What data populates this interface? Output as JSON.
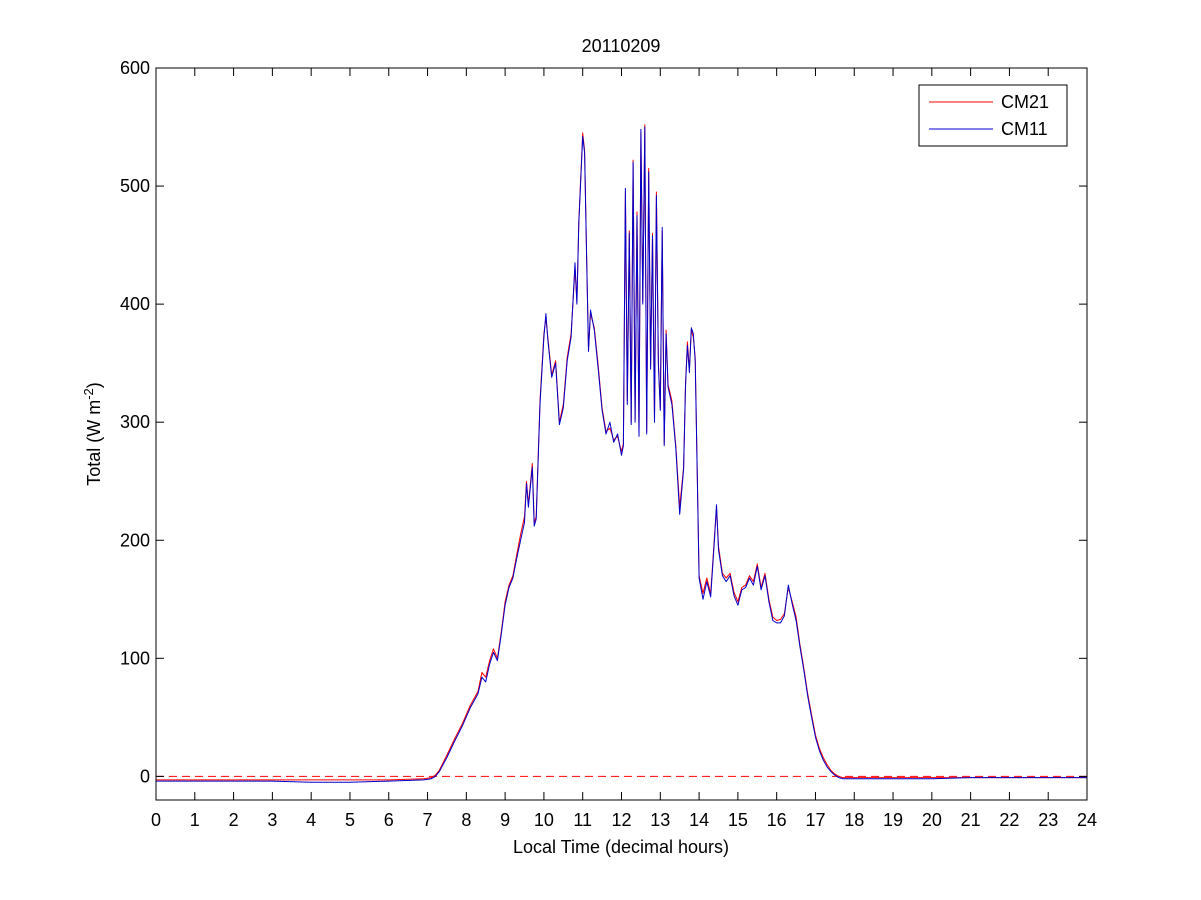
{
  "chart_data": {
    "type": "line",
    "title": "20110209",
    "xlabel": "Local Time (decimal hours)",
    "ylabel": {
      "text": "Total (W m",
      "superscript": "-2",
      "close": ")"
    },
    "xlim": [
      0,
      24
    ],
    "ylim": [
      -20,
      600
    ],
    "xticks": [
      "0",
      "1",
      "2",
      "3",
      "4",
      "5",
      "6",
      "7",
      "8",
      "9",
      "10",
      "11",
      "12",
      "13",
      "14",
      "15",
      "16",
      "17",
      "18",
      "19",
      "20",
      "21",
      "22",
      "23",
      "24"
    ],
    "yticks": [
      "0",
      "100",
      "200",
      "300",
      "400",
      "500",
      "600"
    ],
    "grid": false,
    "box": true,
    "legend_position": "top-right",
    "reference_line": {
      "y": 0,
      "style": "dashed",
      "color": "#ff0000"
    },
    "series": [
      {
        "name": "CM21",
        "color": "#ff0000",
        "points": [
          [
            0,
            -3
          ],
          [
            1,
            -3
          ],
          [
            2,
            -3
          ],
          [
            3,
            -3
          ],
          [
            4,
            -3
          ],
          [
            5,
            -3
          ],
          [
            6,
            -3
          ],
          [
            6.9,
            -2
          ],
          [
            7.1,
            -1
          ],
          [
            7.2,
            1
          ],
          [
            7.3,
            5
          ],
          [
            7.5,
            18
          ],
          [
            7.7,
            32
          ],
          [
            7.9,
            45
          ],
          [
            8.1,
            60
          ],
          [
            8.3,
            72
          ],
          [
            8.4,
            88
          ],
          [
            8.5,
            84
          ],
          [
            8.6,
            98
          ],
          [
            8.7,
            108
          ],
          [
            8.8,
            100
          ],
          [
            8.9,
            122
          ],
          [
            9.0,
            148
          ],
          [
            9.1,
            162
          ],
          [
            9.2,
            170
          ],
          [
            9.3,
            188
          ],
          [
            9.4,
            205
          ],
          [
            9.5,
            220
          ],
          [
            9.55,
            250
          ],
          [
            9.6,
            230
          ],
          [
            9.7,
            265
          ],
          [
            9.75,
            215
          ],
          [
            9.8,
            220
          ],
          [
            9.9,
            318
          ],
          [
            10.0,
            375
          ],
          [
            10.05,
            388
          ],
          [
            10.1,
            372
          ],
          [
            10.2,
            340
          ],
          [
            10.3,
            352
          ],
          [
            10.4,
            300
          ],
          [
            10.5,
            315
          ],
          [
            10.6,
            355
          ],
          [
            10.7,
            375
          ],
          [
            10.8,
            430
          ],
          [
            10.85,
            402
          ],
          [
            10.9,
            470
          ],
          [
            11.0,
            545
          ],
          [
            11.05,
            530
          ],
          [
            11.1,
            442
          ],
          [
            11.15,
            362
          ],
          [
            11.2,
            392
          ],
          [
            11.3,
            380
          ],
          [
            11.4,
            348
          ],
          [
            11.5,
            312
          ],
          [
            11.6,
            292
          ],
          [
            11.7,
            295
          ],
          [
            11.8,
            285
          ],
          [
            11.9,
            288
          ],
          [
            12.0,
            275
          ],
          [
            12.05,
            282
          ],
          [
            12.1,
            495
          ],
          [
            12.15,
            318
          ],
          [
            12.2,
            462
          ],
          [
            12.25,
            300
          ],
          [
            12.3,
            522
          ],
          [
            12.35,
            302
          ],
          [
            12.4,
            478
          ],
          [
            12.45,
            290
          ],
          [
            12.5,
            545
          ],
          [
            12.55,
            402
          ],
          [
            12.6,
            552
          ],
          [
            12.65,
            292
          ],
          [
            12.7,
            515
          ],
          [
            12.75,
            348
          ],
          [
            12.8,
            460
          ],
          [
            12.85,
            302
          ],
          [
            12.9,
            495
          ],
          [
            12.95,
            350
          ],
          [
            13.0,
            312
          ],
          [
            13.05,
            462
          ],
          [
            13.1,
            282
          ],
          [
            13.15,
            378
          ],
          [
            13.2,
            332
          ],
          [
            13.3,
            318
          ],
          [
            13.4,
            280
          ],
          [
            13.5,
            228
          ],
          [
            13.6,
            262
          ],
          [
            13.65,
            332
          ],
          [
            13.7,
            368
          ],
          [
            13.75,
            345
          ],
          [
            13.8,
            378
          ],
          [
            13.85,
            372
          ],
          [
            13.9,
            355
          ],
          [
            14.0,
            170
          ],
          [
            14.1,
            155
          ],
          [
            14.2,
            168
          ],
          [
            14.3,
            155
          ],
          [
            14.4,
            205
          ],
          [
            14.45,
            228
          ],
          [
            14.5,
            195
          ],
          [
            14.6,
            172
          ],
          [
            14.7,
            168
          ],
          [
            14.8,
            172
          ],
          [
            14.9,
            156
          ],
          [
            15.0,
            148
          ],
          [
            15.1,
            160
          ],
          [
            15.2,
            162
          ],
          [
            15.3,
            170
          ],
          [
            15.4,
            165
          ],
          [
            15.5,
            180
          ],
          [
            15.6,
            160
          ],
          [
            15.7,
            172
          ],
          [
            15.8,
            150
          ],
          [
            15.9,
            135
          ],
          [
            16.0,
            132
          ],
          [
            16.1,
            133
          ],
          [
            16.2,
            138
          ],
          [
            16.3,
            160
          ],
          [
            16.4,
            148
          ],
          [
            16.5,
            135
          ],
          [
            16.6,
            112
          ],
          [
            16.7,
            92
          ],
          [
            16.8,
            70
          ],
          [
            16.9,
            52
          ],
          [
            17.0,
            35
          ],
          [
            17.1,
            24
          ],
          [
            17.2,
            16
          ],
          [
            17.3,
            10
          ],
          [
            17.4,
            5
          ],
          [
            17.5,
            2
          ],
          [
            17.6,
            0
          ],
          [
            17.7,
            -1
          ],
          [
            18,
            -1
          ],
          [
            19,
            -1
          ],
          [
            20,
            -1
          ],
          [
            21,
            -1
          ],
          [
            22,
            -1
          ],
          [
            23,
            -1
          ],
          [
            24,
            -1
          ]
        ]
      },
      {
        "name": "CM11",
        "color": "#0000cc",
        "points": [
          [
            0,
            -4
          ],
          [
            1,
            -4
          ],
          [
            2,
            -4
          ],
          [
            3,
            -4
          ],
          [
            4,
            -5
          ],
          [
            5,
            -5
          ],
          [
            6,
            -4
          ],
          [
            6.9,
            -3
          ],
          [
            7.1,
            -2
          ],
          [
            7.2,
            0
          ],
          [
            7.3,
            4
          ],
          [
            7.5,
            16
          ],
          [
            7.7,
            30
          ],
          [
            7.9,
            43
          ],
          [
            8.1,
            58
          ],
          [
            8.3,
            70
          ],
          [
            8.4,
            84
          ],
          [
            8.5,
            80
          ],
          [
            8.6,
            95
          ],
          [
            8.7,
            105
          ],
          [
            8.8,
            98
          ],
          [
            8.9,
            120
          ],
          [
            9.0,
            145
          ],
          [
            9.1,
            160
          ],
          [
            9.2,
            168
          ],
          [
            9.3,
            185
          ],
          [
            9.4,
            200
          ],
          [
            9.5,
            215
          ],
          [
            9.55,
            248
          ],
          [
            9.6,
            228
          ],
          [
            9.7,
            262
          ],
          [
            9.75,
            212
          ],
          [
            9.8,
            218
          ],
          [
            9.9,
            315
          ],
          [
            10.0,
            372
          ],
          [
            10.05,
            392
          ],
          [
            10.1,
            370
          ],
          [
            10.2,
            338
          ],
          [
            10.3,
            350
          ],
          [
            10.4,
            298
          ],
          [
            10.5,
            312
          ],
          [
            10.6,
            352
          ],
          [
            10.7,
            372
          ],
          [
            10.8,
            435
          ],
          [
            10.85,
            400
          ],
          [
            10.9,
            468
          ],
          [
            11.0,
            542
          ],
          [
            11.05,
            528
          ],
          [
            11.1,
            440
          ],
          [
            11.15,
            360
          ],
          [
            11.2,
            395
          ],
          [
            11.3,
            378
          ],
          [
            11.4,
            345
          ],
          [
            11.5,
            310
          ],
          [
            11.6,
            290
          ],
          [
            11.7,
            300
          ],
          [
            11.8,
            283
          ],
          [
            11.9,
            290
          ],
          [
            12.0,
            272
          ],
          [
            12.05,
            280
          ],
          [
            12.1,
            498
          ],
          [
            12.15,
            315
          ],
          [
            12.2,
            460
          ],
          [
            12.25,
            298
          ],
          [
            12.3,
            520
          ],
          [
            12.35,
            300
          ],
          [
            12.4,
            475
          ],
          [
            12.45,
            288
          ],
          [
            12.5,
            548
          ],
          [
            12.55,
            400
          ],
          [
            12.6,
            550
          ],
          [
            12.65,
            290
          ],
          [
            12.7,
            512
          ],
          [
            12.75,
            345
          ],
          [
            12.8,
            458
          ],
          [
            12.85,
            300
          ],
          [
            12.9,
            492
          ],
          [
            12.95,
            348
          ],
          [
            13.0,
            310
          ],
          [
            13.05,
            465
          ],
          [
            13.1,
            280
          ],
          [
            13.15,
            375
          ],
          [
            13.2,
            330
          ],
          [
            13.3,
            315
          ],
          [
            13.4,
            278
          ],
          [
            13.5,
            222
          ],
          [
            13.6,
            260
          ],
          [
            13.65,
            330
          ],
          [
            13.7,
            365
          ],
          [
            13.75,
            342
          ],
          [
            13.8,
            380
          ],
          [
            13.85,
            375
          ],
          [
            13.9,
            352
          ],
          [
            14.0,
            168
          ],
          [
            14.1,
            150
          ],
          [
            14.2,
            165
          ],
          [
            14.3,
            152
          ],
          [
            14.4,
            202
          ],
          [
            14.45,
            230
          ],
          [
            14.5,
            192
          ],
          [
            14.6,
            170
          ],
          [
            14.7,
            165
          ],
          [
            14.8,
            170
          ],
          [
            14.9,
            153
          ],
          [
            15.0,
            145
          ],
          [
            15.1,
            158
          ],
          [
            15.2,
            160
          ],
          [
            15.3,
            168
          ],
          [
            15.4,
            162
          ],
          [
            15.5,
            178
          ],
          [
            15.6,
            158
          ],
          [
            15.7,
            170
          ],
          [
            15.8,
            148
          ],
          [
            15.9,
            132
          ],
          [
            16.0,
            130
          ],
          [
            16.1,
            130
          ],
          [
            16.2,
            136
          ],
          [
            16.3,
            162
          ],
          [
            16.4,
            146
          ],
          [
            16.5,
            132
          ],
          [
            16.6,
            110
          ],
          [
            16.7,
            90
          ],
          [
            16.8,
            68
          ],
          [
            16.9,
            50
          ],
          [
            17.0,
            33
          ],
          [
            17.1,
            22
          ],
          [
            17.2,
            14
          ],
          [
            17.3,
            8
          ],
          [
            17.4,
            4
          ],
          [
            17.5,
            1
          ],
          [
            17.6,
            -1
          ],
          [
            17.7,
            -2
          ],
          [
            18,
            -2
          ],
          [
            19,
            -2
          ],
          [
            20,
            -2
          ],
          [
            21,
            -1
          ],
          [
            22,
            -1
          ],
          [
            23,
            -1
          ],
          [
            24,
            -1
          ]
        ]
      }
    ]
  }
}
